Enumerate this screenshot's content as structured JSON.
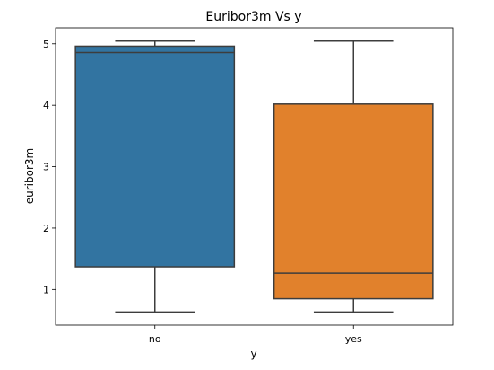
{
  "chart_data": {
    "type": "box",
    "title": "Euribor3m Vs y",
    "xlabel": "y",
    "ylabel": "euribor3m",
    "categories": [
      "no",
      "yes"
    ],
    "boxes": [
      {
        "category": "no",
        "whisker_low": 0.634,
        "q1": 1.37,
        "median": 4.857,
        "q3": 4.961,
        "whisker_high": 5.045,
        "color": "#3274a1"
      },
      {
        "category": "yes",
        "whisker_low": 0.634,
        "q1": 0.85,
        "median": 1.266,
        "q3": 4.02,
        "whisker_high": 5.045,
        "color": "#e1812c"
      }
    ],
    "ylim": [
      0.42,
      5.26
    ],
    "yticks": [
      1,
      2,
      3,
      4,
      5
    ],
    "grid": false,
    "legend": "none"
  }
}
